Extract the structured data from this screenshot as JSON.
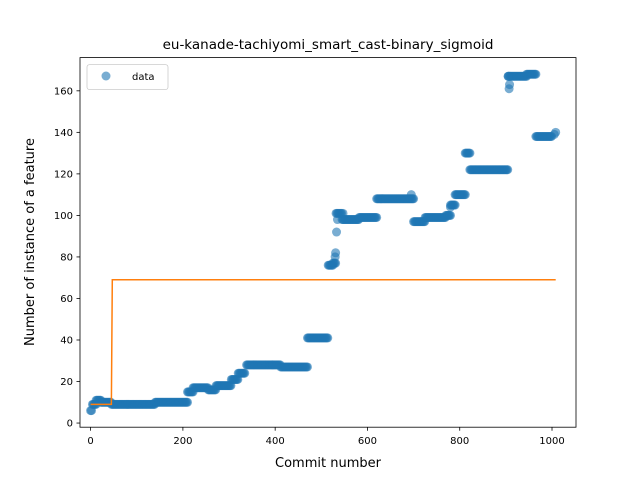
{
  "chart_data": {
    "type": "scatter",
    "title": "eu-kanade-tachiyomi_smart_cast-binary_sigmoid",
    "xlabel": "Commit number",
    "ylabel": "Number of instance of a feature",
    "xlim": [
      -23,
      1052
    ],
    "ylim": [
      -2,
      176
    ],
    "xticks": [
      0,
      200,
      400,
      600,
      800,
      1000
    ],
    "yticks": [
      0,
      20,
      40,
      60,
      80,
      100,
      120,
      140,
      160
    ],
    "grid": false,
    "legend": {
      "position": "top-left",
      "entries": [
        "data"
      ]
    },
    "series": [
      {
        "name": "data",
        "kind": "scatter",
        "color": "#1f77b4",
        "segments": [
          {
            "x0": 0,
            "x1": 3,
            "y": 6
          },
          {
            "x0": 4,
            "x1": 12,
            "y": 9
          },
          {
            "x0": 12,
            "x1": 22,
            "y": 11
          },
          {
            "x0": 22,
            "x1": 45,
            "y": 10
          },
          {
            "x0": 45,
            "x1": 140,
            "y": 9
          },
          {
            "x0": 140,
            "x1": 210,
            "y": 10
          },
          {
            "x0": 210,
            "x1": 222,
            "y": 15
          },
          {
            "x0": 222,
            "x1": 255,
            "y": 17
          },
          {
            "x0": 255,
            "x1": 272,
            "y": 16
          },
          {
            "x0": 272,
            "x1": 305,
            "y": 18
          },
          {
            "x0": 305,
            "x1": 320,
            "y": 21
          },
          {
            "x0": 320,
            "x1": 335,
            "y": 24
          },
          {
            "x0": 338,
            "x1": 395,
            "y": 28
          },
          {
            "x0": 395,
            "x1": 412,
            "y": 28
          },
          {
            "x0": 412,
            "x1": 470,
            "y": 27
          },
          {
            "x0": 470,
            "x1": 515,
            "y": 41
          },
          {
            "x0": 515,
            "x1": 525,
            "y": 76
          },
          {
            "x0": 525,
            "x1": 532,
            "y": 77
          },
          {
            "x0": 532,
            "x1": 545,
            "y": 101
          },
          {
            "x0": 545,
            "x1": 582,
            "y": 98
          },
          {
            "x0": 582,
            "x1": 620,
            "y": 99
          },
          {
            "x0": 620,
            "x1": 700,
            "y": 108
          },
          {
            "x0": 700,
            "x1": 725,
            "y": 97
          },
          {
            "x0": 725,
            "x1": 770,
            "y": 99
          },
          {
            "x0": 770,
            "x1": 780,
            "y": 100
          },
          {
            "x0": 780,
            "x1": 790,
            "y": 105
          },
          {
            "x0": 790,
            "x1": 812,
            "y": 110
          },
          {
            "x0": 812,
            "x1": 822,
            "y": 130
          },
          {
            "x0": 822,
            "x1": 905,
            "y": 122
          },
          {
            "x0": 905,
            "x1": 945,
            "y": 167
          },
          {
            "x0": 945,
            "x1": 965,
            "y": 168
          },
          {
            "x0": 965,
            "x1": 1000,
            "y": 138
          }
        ],
        "extra_points": [
          [
            530,
            80
          ],
          [
            531,
            82
          ],
          [
            533,
            92
          ],
          [
            535,
            98
          ],
          [
            547,
            101
          ],
          [
            695,
            110
          ],
          [
            780,
            104
          ],
          [
            907,
            161
          ],
          [
            908,
            163
          ],
          [
            905,
            167
          ],
          [
            1008,
            140
          ],
          [
            1005,
            139
          ]
        ]
      },
      {
        "name": "",
        "kind": "step-line",
        "color": "#ff7f0e",
        "x": [
          0,
          45,
          47,
          1008
        ],
        "y": [
          9,
          9,
          69,
          69
        ]
      }
    ]
  }
}
